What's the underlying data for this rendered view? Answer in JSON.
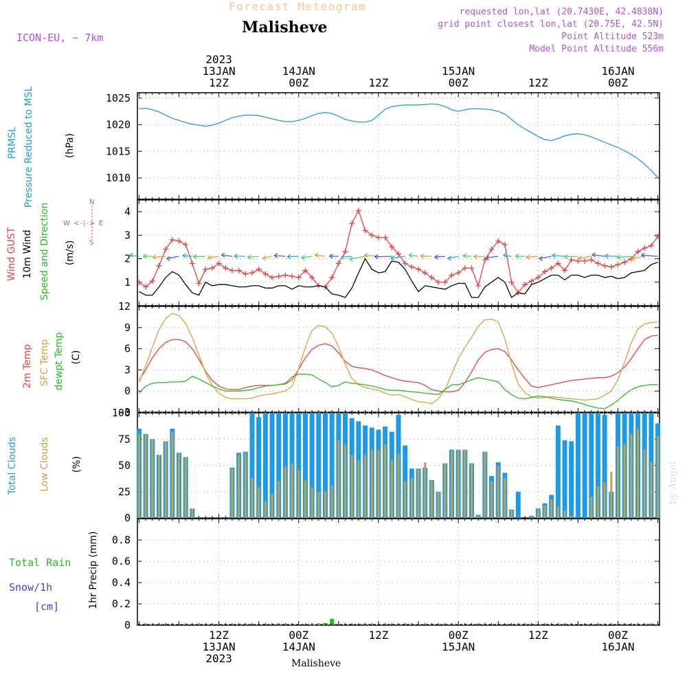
{
  "header": {
    "product": "Forecast Meteogram",
    "location": "Malisheve",
    "model": "ICON-EU, ~ 7km",
    "requested": "requested lon,lat (20.7430E, 42.4838N)",
    "gridpoint": "grid point closest lon,lat (20.75E, 42.5N)",
    "point_alt": "Point Altitude 523m",
    "model_alt": "Model Point Altitude 556m",
    "footer_location": "Malisheve",
    "watermark": "by Angel"
  },
  "time_axis": {
    "top_labels": [
      {
        "l1": "2023",
        "l2": "13JAN",
        "l3": "12Z",
        "hour": 12
      },
      {
        "l1": "",
        "l2": "14JAN",
        "l3": "00Z",
        "hour": 24
      },
      {
        "l1": "",
        "l2": "",
        "l3": "12Z",
        "hour": 36
      },
      {
        "l1": "",
        "l2": "15JAN",
        "l3": "00Z",
        "hour": 48
      },
      {
        "l1": "",
        "l2": "",
        "l3": "12Z",
        "hour": 60
      },
      {
        "l1": "",
        "l2": "16JAN",
        "l3": "00Z",
        "hour": 72
      }
    ],
    "bottom_labels": [
      {
        "l1": "12Z",
        "l2": "13JAN",
        "l3": "2023",
        "hour": 12
      },
      {
        "l1": "00Z",
        "l2": "14JAN",
        "l3": "",
        "hour": 24
      },
      {
        "l1": "12Z",
        "l2": "",
        "l3": "",
        "hour": 36
      },
      {
        "l1": "00Z",
        "l2": "15JAN",
        "l3": "",
        "hour": 48
      },
      {
        "l1": "12Z",
        "l2": "",
        "l3": "",
        "hour": 60
      },
      {
        "l1": "00Z",
        "l2": "16JAN",
        "l3": "",
        "hour": 72
      }
    ]
  },
  "panel_labels": {
    "pressure": {
      "name": "PRMSL",
      "desc": "Pressure Reduced to MSL",
      "unit": "(hPa)"
    },
    "wind": {
      "gust": "Wind GUST",
      "wind10": "10m Wind",
      "speed": "Speed and Direction",
      "unit": "(m/s)",
      "compass_n": "N",
      "compass_s": "S",
      "compass_we": "W <-|-> E"
    },
    "temp": {
      "t2m": "2m Temp",
      "sfc": "SFC Temp",
      "dew": "dewpt Temp",
      "unit": "(C)"
    },
    "clouds": {
      "total": "Total Clouds",
      "low": "Low Clouds",
      "unit": "(%)"
    },
    "precip": {
      "unit": "1hr Precip (mm)",
      "rain": "Total  Rain",
      "snow": "Snow/1h",
      "snow_unit": "[cm]"
    }
  },
  "colors": {
    "pressure": "#1e9be6",
    "gust": "#e84040",
    "wind": "#000000",
    "t2m": "#e84040",
    "sfc": "#d9a03a",
    "dew": "#20c020",
    "total_cloud": "#1e9be6",
    "low_cloud": "#c8a04a",
    "rain": "#20c020",
    "snow": "#4040e0",
    "meta": "#b050e0",
    "product": "#f0c890"
  },
  "chart_data": [
    {
      "type": "line",
      "title": "PRMSL Pressure Reduced to MSL",
      "ylabel": "(hPa)",
      "ylim": [
        1006,
        1026
      ],
      "yticks": [
        1010,
        1015,
        1020,
        1025
      ],
      "x_hours": [
        0,
        1,
        2,
        3,
        4,
        5,
        6,
        7,
        8,
        9,
        10,
        11,
        12,
        13,
        14,
        15,
        16,
        17,
        18,
        19,
        20,
        21,
        22,
        23,
        24,
        25,
        26,
        27,
        28,
        29,
        30,
        31,
        32,
        33,
        34,
        35,
        36,
        37,
        38,
        39,
        40,
        41,
        42,
        43,
        44,
        45,
        46,
        47,
        48,
        49,
        50,
        51,
        52,
        53,
        54,
        55,
        56,
        57,
        58,
        59,
        60,
        61,
        62,
        63,
        64,
        65,
        66,
        67,
        68,
        69,
        70,
        71,
        72,
        73,
        74,
        75,
        76,
        77,
        78
      ],
      "series": [
        {
          "name": "PRMSL",
          "values": [
            1023,
            1023.1,
            1022.8,
            1022.4,
            1021.8,
            1021.2,
            1020.8,
            1020.4,
            1020.1,
            1019.9,
            1019.7,
            1019.9,
            1020.3,
            1020.8,
            1021.3,
            1021.6,
            1021.8,
            1021.8,
            1021.7,
            1021.4,
            1021.1,
            1020.8,
            1020.6,
            1020.6,
            1020.8,
            1021.2,
            1021.7,
            1022.1,
            1022.3,
            1022.1,
            1021.6,
            1021.0,
            1020.7,
            1020.5,
            1020.5,
            1020.8,
            1021.8,
            1022.9,
            1023.4,
            1023.6,
            1023.7,
            1023.7,
            1023.7,
            1023.8,
            1023.9,
            1023.8,
            1023.4,
            1022.8,
            1022.5,
            1022.8,
            1023.0,
            1023.0,
            1022.9,
            1022.8,
            1022.5,
            1022.0,
            1021.0,
            1020.0,
            1019.2,
            1018.5,
            1017.8,
            1017.2,
            1017.0,
            1017.4,
            1017.9,
            1018.2,
            1018.3,
            1018.1,
            1017.7,
            1017.2,
            1016.7,
            1016.2,
            1015.7,
            1015.1,
            1014.4,
            1013.6,
            1012.6,
            1011.4,
            1010.1
          ]
        },
        {
          "name": "_tail",
          "values": []
        }
      ]
    },
    {
      "type": "line",
      "title": "Wind GUST, 10m Wind Speed and Direction",
      "ylabel": "(m/s)",
      "ylim": [
        0,
        4.5
      ],
      "yticks": [
        1,
        2,
        3,
        4
      ],
      "x_hours": [
        0,
        1,
        2,
        3,
        4,
        5,
        6,
        7,
        8,
        9,
        10,
        11,
        12,
        13,
        14,
        15,
        16,
        17,
        18,
        19,
        20,
        21,
        22,
        23,
        24,
        25,
        26,
        27,
        28,
        29,
        30,
        31,
        32,
        33,
        34,
        35,
        36,
        37,
        38,
        39,
        40,
        41,
        42,
        43,
        44,
        45,
        46,
        47,
        48,
        49,
        50,
        51,
        52,
        53,
        54,
        55,
        56,
        57,
        58,
        59,
        60,
        61,
        62,
        63,
        64,
        65,
        66,
        67,
        68,
        69,
        70,
        71,
        72,
        73,
        74,
        75,
        76,
        77,
        78
      ],
      "series": [
        {
          "name": "Wind GUST",
          "values": [
            1.0,
            0.8,
            1.05,
            1.7,
            2.4,
            2.8,
            2.75,
            2.6,
            1.8,
            0.95,
            1.55,
            1.6,
            1.8,
            1.6,
            1.5,
            1.5,
            1.35,
            1.4,
            1.55,
            1.35,
            1.2,
            1.25,
            1.3,
            1.25,
            1.2,
            1.5,
            1.2,
            0.85,
            0.8,
            1.2,
            1.8,
            2.3,
            3.5,
            4.05,
            3.2,
            3.0,
            2.9,
            2.9,
            2.5,
            2.2,
            1.8,
            1.65,
            1.55,
            1.4,
            1.2,
            1.0,
            1.0,
            1.3,
            1.4,
            1.6,
            1.6,
            0.85,
            1.95,
            2.4,
            2.75,
            2.6,
            1.0,
            0.55,
            0.9,
            1.05,
            1.2,
            1.45,
            1.6,
            1.8,
            1.5,
            1.95,
            1.9,
            1.9,
            1.95,
            1.8,
            1.7,
            1.65,
            1.75,
            1.85,
            2.0,
            2.3,
            2.45,
            2.55,
            2.95
          ]
        },
        {
          "name": "10m Wind",
          "values": [
            0.6,
            0.45,
            0.45,
            0.8,
            1.2,
            1.45,
            1.3,
            0.9,
            0.55,
            0.45,
            1.0,
            0.85,
            0.9,
            0.9,
            0.85,
            0.8,
            0.8,
            0.85,
            0.85,
            0.75,
            0.75,
            0.85,
            0.85,
            0.7,
            0.85,
            0.8,
            0.8,
            0.85,
            0.8,
            0.5,
            0.45,
            0.35,
            0.75,
            1.4,
            2.0,
            1.55,
            1.4,
            1.45,
            1.9,
            1.85,
            1.55,
            1.05,
            0.6,
            0.85,
            0.8,
            0.75,
            0.7,
            0.85,
            0.95,
            0.95,
            0.35,
            0.35,
            0.8,
            1.0,
            1.2,
            1.0,
            0.35,
            0.55,
            0.5,
            0.9,
            1.0,
            1.15,
            1.3,
            1.3,
            1.1,
            1.3,
            1.3,
            1.2,
            1.3,
            1.3,
            1.2,
            1.25,
            1.15,
            1.2,
            1.4,
            1.45,
            1.5,
            1.75,
            1.85
          ]
        }
      ]
    },
    {
      "type": "line",
      "title": "2m Temp, SFC Temp, dewpt Temp",
      "ylabel": "(C)",
      "ylim": [
        -3,
        12
      ],
      "yticks": [
        -3,
        0,
        3,
        6,
        9,
        12
      ],
      "x_hours": [
        0,
        1,
        2,
        3,
        4,
        5,
        6,
        7,
        8,
        9,
        10,
        11,
        12,
        13,
        14,
        15,
        16,
        17,
        18,
        19,
        20,
        21,
        22,
        23,
        24,
        25,
        26,
        27,
        28,
        29,
        30,
        31,
        32,
        33,
        34,
        35,
        36,
        37,
        38,
        39,
        40,
        41,
        42,
        43,
        44,
        45,
        46,
        47,
        48,
        49,
        50,
        51,
        52,
        53,
        54,
        55,
        56,
        57,
        58,
        59,
        60,
        61,
        62,
        63,
        64,
        65,
        66,
        67,
        68,
        69,
        70,
        71,
        72,
        73,
        74,
        75,
        76,
        77,
        78
      ],
      "series": [
        {
          "name": "2m Temp",
          "values": [
            1.5,
            3.0,
            4.7,
            6.0,
            6.9,
            7.3,
            7.3,
            7.0,
            6.0,
            4.5,
            2.8,
            1.5,
            0.7,
            0.3,
            0.2,
            0.2,
            0.5,
            0.7,
            0.8,
            0.8,
            0.8,
            0.9,
            1.0,
            1.6,
            3.1,
            4.7,
            5.9,
            6.5,
            6.7,
            6.4,
            5.4,
            4.2,
            3.5,
            3.3,
            3.2,
            3.0,
            2.6,
            2.2,
            1.9,
            1.6,
            1.4,
            1.3,
            1.2,
            0.8,
            0.2,
            0.0,
            -0.1,
            -0.1,
            0.1,
            1.2,
            2.7,
            4.4,
            5.5,
            5.9,
            6.0,
            5.6,
            4.4,
            3.0,
            1.8,
            0.7,
            0.5,
            0.7,
            0.9,
            1.1,
            1.3,
            1.5,
            1.6,
            1.7,
            1.8,
            1.9,
            1.9,
            2.1,
            2.6,
            3.4,
            4.6,
            6.0,
            7.3,
            7.8,
            7.9
          ]
        },
        {
          "name": "SFC Temp",
          "values": [
            1.2,
            3.6,
            6.2,
            8.7,
            10.3,
            11.0,
            10.7,
            9.6,
            7.6,
            5.1,
            2.6,
            0.8,
            -0.3,
            -0.9,
            -1.1,
            -1.1,
            -1.1,
            -1.0,
            -0.7,
            -0.5,
            -0.4,
            -0.2,
            0.0,
            0.7,
            3.2,
            6.2,
            8.6,
            9.3,
            9.1,
            8.2,
            6.3,
            3.8,
            1.8,
            0.9,
            0.5,
            0.3,
            0.1,
            -0.3,
            -0.6,
            -0.5,
            -0.8,
            -1.2,
            -1.5,
            -1.6,
            -1.8,
            -1.1,
            0.2,
            2.4,
            4.6,
            6.2,
            7.6,
            9.2,
            10.1,
            10.2,
            9.8,
            7.4,
            3.9,
            1.0,
            -0.2,
            -0.8,
            -1.0,
            -0.9,
            -0.8,
            -0.9,
            -1.0,
            -1.1,
            -1.2,
            -1.3,
            -1.2,
            -1.1,
            -0.6,
            0.0,
            1.6,
            4.1,
            6.8,
            8.8,
            9.5,
            9.7,
            9.8
          ]
        },
        {
          "name": "dewpt Temp",
          "values": [
            -0.3,
            0.7,
            1.1,
            1.2,
            1.2,
            1.3,
            1.3,
            1.4,
            2.1,
            1.7,
            1.2,
            0.7,
            0.3,
            0.0,
            0.0,
            0.0,
            0.1,
            0.2,
            0.5,
            0.7,
            0.8,
            0.9,
            1.1,
            2.0,
            2.4,
            2.4,
            2.3,
            1.7,
            1.2,
            0.6,
            0.8,
            1.3,
            1.1,
            1.0,
            0.9,
            0.7,
            0.5,
            0.2,
            0.1,
            0.1,
            0.0,
            -0.1,
            -0.2,
            -0.3,
            -0.4,
            -0.5,
            0.2,
            0.9,
            0.9,
            1.2,
            1.6,
            1.9,
            1.7,
            1.5,
            1.3,
            0.2,
            -0.5,
            -1.0,
            -1.1,
            -0.9,
            -0.7,
            -0.8,
            -1.0,
            -1.2,
            -1.3,
            -1.4,
            -1.6,
            -1.9,
            -2.2,
            -2.4,
            -2.5,
            -2.0,
            -1.3,
            -0.5,
            0.2,
            0.6,
            0.8,
            0.9,
            0.9
          ]
        }
      ]
    },
    {
      "type": "bar",
      "title": "Total Clouds, Low Clouds",
      "ylabel": "(%)",
      "ylim": [
        0,
        100
      ],
      "yticks": [
        0,
        25,
        50,
        75,
        100
      ],
      "x_hours": [
        0,
        1,
        2,
        3,
        4,
        5,
        6,
        7,
        8,
        9,
        10,
        11,
        12,
        13,
        14,
        15,
        16,
        17,
        18,
        19,
        20,
        21,
        22,
        23,
        24,
        25,
        26,
        27,
        28,
        29,
        30,
        31,
        32,
        33,
        34,
        35,
        36,
        37,
        38,
        39,
        40,
        41,
        42,
        43,
        44,
        45,
        46,
        47,
        48,
        49,
        50,
        51,
        52,
        53,
        54,
        55,
        56,
        57,
        58,
        59,
        60,
        61,
        62,
        63,
        64,
        65,
        66,
        67,
        68,
        69,
        70,
        71,
        72,
        73,
        74,
        75,
        76,
        77,
        78
      ],
      "series": [
        {
          "name": "Total Clouds",
          "values": [
            85,
            80,
            75,
            60,
            73,
            85,
            62,
            58,
            9,
            0,
            0,
            0,
            0,
            0,
            48,
            62,
            63,
            100,
            96,
            100,
            100,
            100,
            100,
            100,
            100,
            100,
            100,
            100,
            100,
            100,
            100,
            100,
            95,
            92,
            88,
            86,
            84,
            87,
            82,
            98,
            69,
            47,
            47,
            48,
            36,
            25,
            52,
            65,
            65,
            65,
            52,
            3,
            63,
            40,
            53,
            43,
            8,
            25,
            0,
            2,
            9,
            14,
            22,
            88,
            74,
            73,
            100,
            100,
            100,
            100,
            98,
            25,
            100,
            100,
            100,
            100,
            100,
            100,
            90
          ]
        },
        {
          "name": "Low Clouds",
          "values": [
            80,
            80,
            75,
            60,
            73,
            82,
            62,
            58,
            9,
            0,
            0,
            0,
            0,
            0,
            47,
            60,
            62,
            38,
            29,
            16,
            23,
            35,
            49,
            52,
            45,
            36,
            29,
            25,
            25,
            31,
            74,
            70,
            60,
            55,
            60,
            65,
            65,
            70,
            55,
            61,
            35,
            38,
            47,
            53,
            35,
            25,
            52,
            64,
            65,
            65,
            52,
            2,
            63,
            35,
            50,
            38,
            7,
            0,
            0,
            1,
            8,
            12,
            18,
            11,
            7,
            2,
            0,
            0,
            20,
            30,
            34,
            44,
            68,
            70,
            80,
            85,
            65,
            53,
            78
          ]
        }
      ]
    },
    {
      "type": "bar",
      "title": "1hr Precip",
      "ylabel": "1hr Precip (mm)",
      "ylim": [
        0,
        1
      ],
      "yticks": [
        0,
        0.2,
        0.4,
        0.6,
        0.8
      ],
      "x_hours": [
        26,
        27,
        28,
        29
      ],
      "series": [
        {
          "name": "Total Rain",
          "values": [
            0.005,
            0.01,
            0.02,
            0.06
          ]
        },
        {
          "name": "Snow/1h",
          "values": [
            0,
            0,
            0,
            0
          ]
        }
      ]
    }
  ]
}
